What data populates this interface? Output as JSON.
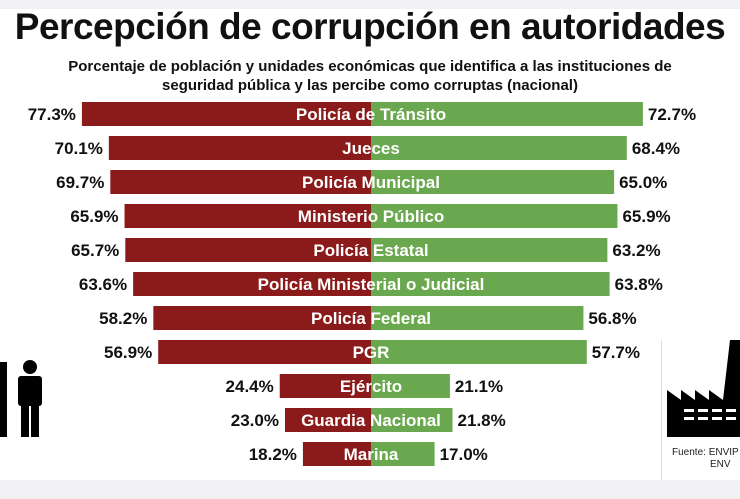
{
  "title": "Percepción de corrupción en autoridades",
  "subtitle_line1": "Porcentaje de población y unidades económicas que identifica a las instituciones de",
  "subtitle_line2": "seguridad pública y las percibe como corruptas (nacional)",
  "source_line1": "Fuente: ENVIP",
  "source_line2": "ENV",
  "icons": {
    "left": "person-icon",
    "right": "factory-icon"
  },
  "chart_data": {
    "type": "bar",
    "orientation": "horizontal-diverging",
    "title": "Percepción de corrupción en autoridades",
    "categories": [
      "Policía de Tránsito",
      "Jueces",
      "Policía Municipal",
      "Ministerio Público",
      "Policía Estatal",
      "Policía Ministerial o Judicial",
      "Policía Federal",
      "PGR",
      "Ejército",
      "Guardia Nacional",
      "Marina"
    ],
    "series": [
      {
        "values": [
          77.3,
          70.1,
          69.7,
          65.9,
          65.7,
          63.6,
          58.2,
          56.9,
          24.4,
          23.0,
          18.2
        ],
        "labels": [
          "77.3%",
          "70.1%",
          "69.7%",
          "65.9%",
          "65.7%",
          "63.6%",
          "58.2%",
          "56.9%",
          "24.4%",
          "23.0%",
          "18.2%"
        ],
        "color": "#8b1a1a",
        "side": "left"
      },
      {
        "values": [
          72.7,
          68.4,
          65.0,
          65.9,
          63.2,
          63.8,
          56.8,
          57.7,
          21.1,
          21.8,
          17.0
        ],
        "labels": [
          "72.7%",
          "68.4%",
          "65.0%",
          "65.9%",
          "63.2%",
          "63.8%",
          "56.8%",
          "57.7%",
          "21.1%",
          "21.8%",
          "17.0%"
        ],
        "color": "#6aa84f",
        "side": "right"
      }
    ],
    "grid": false
  }
}
